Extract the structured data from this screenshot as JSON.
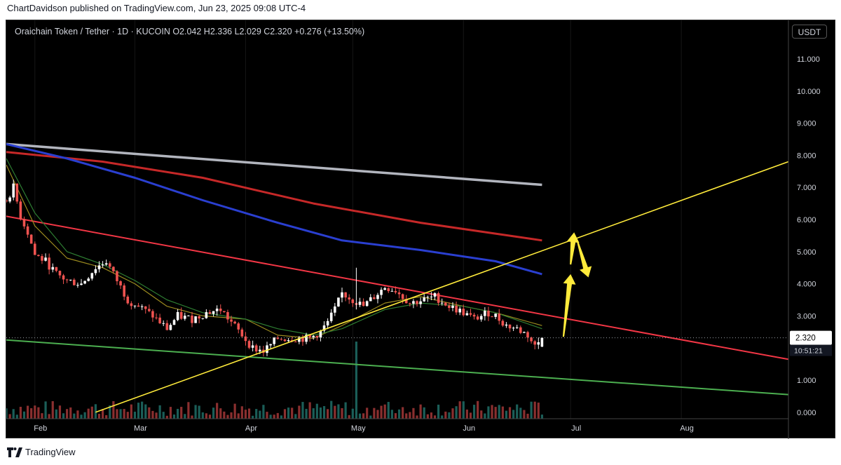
{
  "publisher": "ChartDavidson published on TradingView.com, Jun 23, 2025 09:08 UTC-4",
  "legend": "Oraichain Token / Tether · 1D · KUCOIN  O2.042  H2.336  L2.029  C2.320  +0.276 (+13.50%)",
  "currency_button": "USDT",
  "footer_brand": "TradingView",
  "colors": {
    "up": "#26a69a",
    "down": "#ef5350",
    "support": "#4caf50",
    "resistance": "#f23645",
    "trendline": "#ffeb3b",
    "ma_white": "#b2b5be",
    "ma_red": "#c62828",
    "ma_blue": "#2a3fd0",
    "ema_fast": "#9c8b1f",
    "ema_slow": "#2e7d32",
    "arrow": "#ffeb3b"
  },
  "chart_data": {
    "type": "candlestick",
    "symbol": "Oraichain Token / Tether",
    "interval": "1D",
    "exchange": "KUCOIN",
    "last": {
      "open": 2.042,
      "high": 2.336,
      "low": 2.029,
      "close": 2.32,
      "change": 0.276,
      "change_pct": 13.5
    },
    "x_range": [
      "2025-01-24",
      "2025-08-31"
    ],
    "x_ticks": [
      "Feb",
      "Mar",
      "Apr",
      "May",
      "Jun",
      "Jul",
      "Aug"
    ],
    "y_range": [
      -0.2,
      12.2
    ],
    "y_ticks": [
      "0.000",
      "1.000",
      "2.000",
      "3.000",
      "4.000",
      "5.000",
      "6.000",
      "7.000",
      "8.000",
      "9.000",
      "10.000",
      "11.000"
    ],
    "price_label": "2.320",
    "countdown": "10:51:21",
    "price_series": [
      [
        "2025-01-24",
        6.6
      ],
      [
        "2025-01-26",
        7.0
      ],
      [
        "2025-01-28",
        6.1
      ],
      [
        "2025-01-30",
        5.6
      ],
      [
        "2025-02-01",
        4.9
      ],
      [
        "2025-02-04",
        4.7
      ],
      [
        "2025-02-07",
        4.3
      ],
      [
        "2025-02-10",
        4.1
      ],
      [
        "2025-02-14",
        4.0
      ],
      [
        "2025-02-18",
        4.5
      ],
      [
        "2025-02-21",
        4.7
      ],
      [
        "2025-02-24",
        4.1
      ],
      [
        "2025-02-27",
        3.5
      ],
      [
        "2025-03-02",
        3.3
      ],
      [
        "2025-03-06",
        3.0
      ],
      [
        "2025-03-10",
        2.6
      ],
      [
        "2025-03-13",
        3.0
      ],
      [
        "2025-03-17",
        2.9
      ],
      [
        "2025-03-21",
        3.1
      ],
      [
        "2025-03-25",
        3.2
      ],
      [
        "2025-03-28",
        2.8
      ],
      [
        "2025-03-31",
        2.4
      ],
      [
        "2025-04-03",
        2.0
      ],
      [
        "2025-04-06",
        1.9
      ],
      [
        "2025-04-10",
        2.3
      ],
      [
        "2025-04-15",
        2.3
      ],
      [
        "2025-04-19",
        2.3
      ],
      [
        "2025-04-22",
        2.5
      ],
      [
        "2025-04-24",
        2.8
      ],
      [
        "2025-04-26",
        3.2
      ],
      [
        "2025-04-28",
        3.7
      ],
      [
        "2025-05-01",
        3.5
      ],
      [
        "2025-05-04",
        3.3
      ],
      [
        "2025-05-07",
        3.6
      ],
      [
        "2025-05-10",
        3.9
      ],
      [
        "2025-05-13",
        3.8
      ],
      [
        "2025-05-17",
        3.4
      ],
      [
        "2025-05-21",
        3.5
      ],
      [
        "2025-05-24",
        3.6
      ],
      [
        "2025-05-28",
        3.3
      ],
      [
        "2025-06-01",
        3.1
      ],
      [
        "2025-06-04",
        2.9
      ],
      [
        "2025-06-08",
        3.1
      ],
      [
        "2025-06-10",
        3.0
      ],
      [
        "2025-06-13",
        2.7
      ],
      [
        "2025-06-16",
        2.6
      ],
      [
        "2025-06-19",
        2.4
      ],
      [
        "2025-06-21",
        2.05
      ],
      [
        "2025-06-23",
        2.32
      ]
    ],
    "wicks": [
      [
        "2025-05-02",
        4.5
      ]
    ],
    "ema_fast": [
      [
        "2025-01-24",
        7.7
      ],
      [
        "2025-02-01",
        5.8
      ],
      [
        "2025-02-10",
        4.8
      ],
      [
        "2025-02-20",
        4.5
      ],
      [
        "2025-03-01",
        4.0
      ],
      [
        "2025-03-10",
        3.3
      ],
      [
        "2025-03-20",
        3.0
      ],
      [
        "2025-04-01",
        2.9
      ],
      [
        "2025-04-10",
        2.4
      ],
      [
        "2025-04-20",
        2.3
      ],
      [
        "2025-04-28",
        2.7
      ],
      [
        "2025-05-10",
        3.4
      ],
      [
        "2025-05-20",
        3.6
      ],
      [
        "2025-06-01",
        3.3
      ],
      [
        "2025-06-10",
        3.1
      ],
      [
        "2025-06-23",
        2.7
      ]
    ],
    "ema_slow": [
      [
        "2025-01-24",
        7.9
      ],
      [
        "2025-02-01",
        6.2
      ],
      [
        "2025-02-10",
        5.0
      ],
      [
        "2025-02-20",
        4.6
      ],
      [
        "2025-03-01",
        4.1
      ],
      [
        "2025-03-10",
        3.5
      ],
      [
        "2025-03-20",
        3.1
      ],
      [
        "2025-04-01",
        2.9
      ],
      [
        "2025-04-10",
        2.6
      ],
      [
        "2025-04-20",
        2.4
      ],
      [
        "2025-04-28",
        2.6
      ],
      [
        "2025-05-10",
        3.2
      ],
      [
        "2025-05-20",
        3.4
      ],
      [
        "2025-06-01",
        3.3
      ],
      [
        "2025-06-10",
        3.1
      ],
      [
        "2025-06-23",
        2.6
      ]
    ],
    "ma_white": [
      [
        "2025-01-24",
        8.35
      ],
      [
        "2025-06-23",
        7.08
      ]
    ],
    "ma_red": [
      [
        "2025-01-24",
        8.1
      ],
      [
        "2025-02-20",
        7.8
      ],
      [
        "2025-03-20",
        7.3
      ],
      [
        "2025-04-20",
        6.5
      ],
      [
        "2025-05-20",
        5.9
      ],
      [
        "2025-06-23",
        5.35
      ]
    ],
    "ma_blue": [
      [
        "2025-01-24",
        8.35
      ],
      [
        "2025-02-10",
        7.9
      ],
      [
        "2025-03-01",
        7.3
      ],
      [
        "2025-03-20",
        6.6
      ],
      [
        "2025-04-10",
        5.9
      ],
      [
        "2025-04-28",
        5.35
      ],
      [
        "2025-05-20",
        5.05
      ],
      [
        "2025-06-10",
        4.7
      ],
      [
        "2025-06-23",
        4.3
      ]
    ],
    "resistance_line": [
      [
        "2025-01-24",
        6.1
      ],
      [
        "2025-08-31",
        1.65
      ]
    ],
    "support_line": [
      [
        "2025-01-24",
        2.25
      ],
      [
        "2025-08-31",
        0.55
      ]
    ],
    "trend_line": [
      [
        "2025-02-18",
        0.0
      ],
      [
        "2025-08-31",
        7.8
      ]
    ],
    "arrows": [
      {
        "from": [
          "2025-06-29",
          2.35
        ],
        "to": [
          "2025-07-01",
          4.3
        ]
      },
      {
        "from": [
          "2025-07-01",
          4.6
        ],
        "to": [
          "2025-07-02",
          5.6
        ]
      },
      {
        "from": [
          "2025-07-03",
          5.3
        ],
        "to": [
          "2025-07-06",
          4.2
        ]
      }
    ],
    "volume_note": "volume bars shown at bottom of pane"
  }
}
